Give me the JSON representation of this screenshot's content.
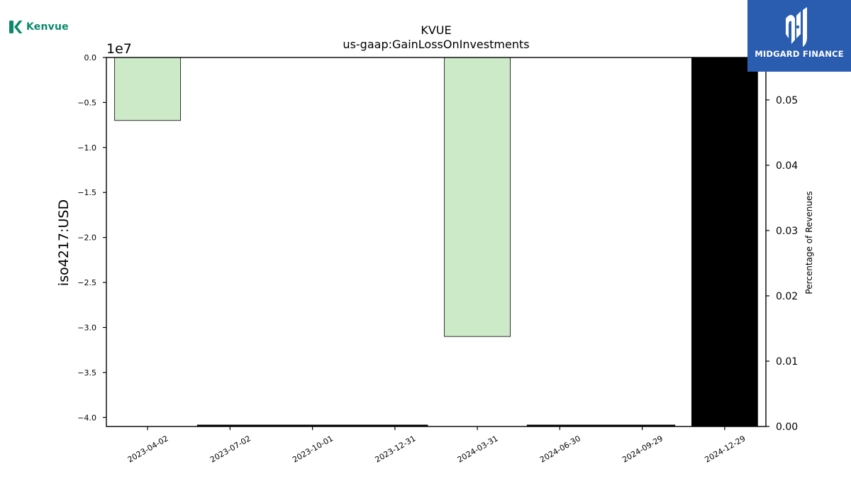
{
  "brands": {
    "left": "Kenvue",
    "right": "MIDGARD FINANCE"
  },
  "chart_data": {
    "type": "bar",
    "title": "KVUE",
    "subtitle": "us-gaap:GainLossOnInvestments",
    "ylabel": "iso4217:USD",
    "y2label": "Percentage of Revenues",
    "offset_label": "1e7",
    "categories": [
      "2023-04-02",
      "2023-07-02",
      "2023-10-01",
      "2023-12-31",
      "2024-03-31",
      "2024-06-30",
      "2024-09-29",
      "2024-12-29"
    ],
    "values": [
      -7000000,
      null,
      null,
      null,
      -31000000,
      null,
      null,
      -41000000
    ],
    "bar_colors": [
      "#cdeac8",
      null,
      null,
      null,
      "#cdeac8",
      null,
      null,
      "#000000"
    ],
    "ylim": [
      -41000000,
      0
    ],
    "yticks": [
      0,
      -5000000,
      -10000000,
      -15000000,
      -20000000,
      -25000000,
      -30000000,
      -35000000,
      -40000000
    ],
    "ytick_labels": [
      "0.0",
      "−0.5",
      "−1.0",
      "−1.5",
      "−2.0",
      "−2.5",
      "−3.0",
      "−3.5",
      "−4.0"
    ],
    "y2lim": [
      0,
      0.0565
    ],
    "y2ticks": [
      0,
      0.01,
      0.02,
      0.03,
      0.04,
      0.05
    ],
    "y2tick_labels": [
      "0.00",
      "0.01",
      "0.02",
      "0.03",
      "0.04",
      "0.05"
    ],
    "baseline_segments": [
      [
        1,
        3
      ],
      [
        5,
        6
      ]
    ],
    "grid": false
  }
}
